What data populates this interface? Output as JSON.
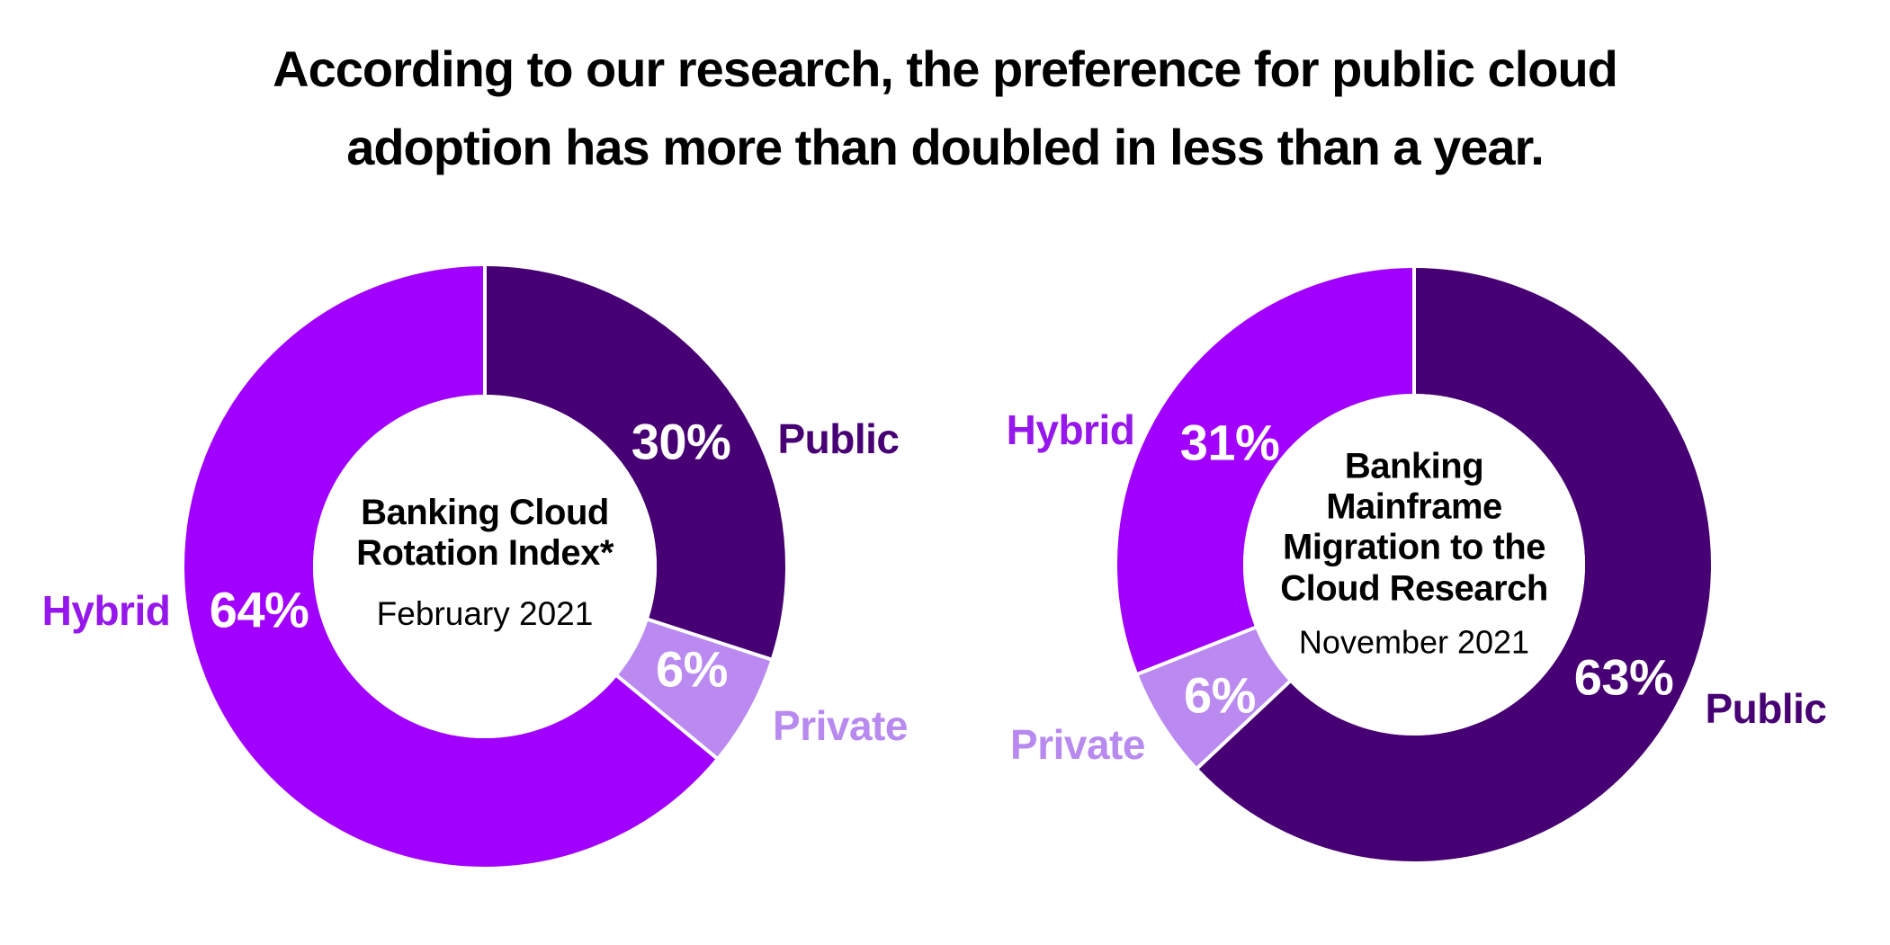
{
  "title": "According to our research, the preference for public cloud\nadoption has more than doubled in less than a year.",
  "palette": {
    "public_dark_purple": "#460073",
    "hybrid_bright_purple": "#A100FF",
    "private_light_purple": "#BA8AF0",
    "pct_text_white": "#FFFFFF",
    "title_black": "#000000",
    "background": "#FFFFFF"
  },
  "chart_data": [
    {
      "type": "pie",
      "variant": "donut",
      "center_title": "Banking Cloud\nRotation Index*",
      "center_subtitle": "February 2021",
      "start_angle": "12 o'clock",
      "direction": "clockwise",
      "legend_position": "around chart",
      "segments": [
        {
          "name": "Public",
          "value": 30,
          "pct_label": "30%",
          "color": "#460073",
          "label_color": "#460073"
        },
        {
          "name": "Private",
          "value": 6,
          "pct_label": "6%",
          "color": "#BA8AF0",
          "label_color": "#B88AF0"
        },
        {
          "name": "Hybrid",
          "value": 64,
          "pct_label": "64%",
          "color": "#A100FF",
          "label_color": "#9617EC"
        }
      ]
    },
    {
      "type": "pie",
      "variant": "donut",
      "center_title": "Banking\nMainframe\nMigration to the\nCloud Research",
      "center_subtitle": "November 2021",
      "start_angle": "12 o'clock",
      "direction": "clockwise",
      "legend_position": "around chart",
      "segments": [
        {
          "name": "Public",
          "value": 63,
          "pct_label": "63%",
          "color": "#460073",
          "label_color": "#460073"
        },
        {
          "name": "Private",
          "value": 6,
          "pct_label": "6%",
          "color": "#BA8AF0",
          "label_color": "#B88AF0"
        },
        {
          "name": "Hybrid",
          "value": 31,
          "pct_label": "31%",
          "color": "#A100FF",
          "label_color": "#9617EC"
        }
      ]
    }
  ]
}
